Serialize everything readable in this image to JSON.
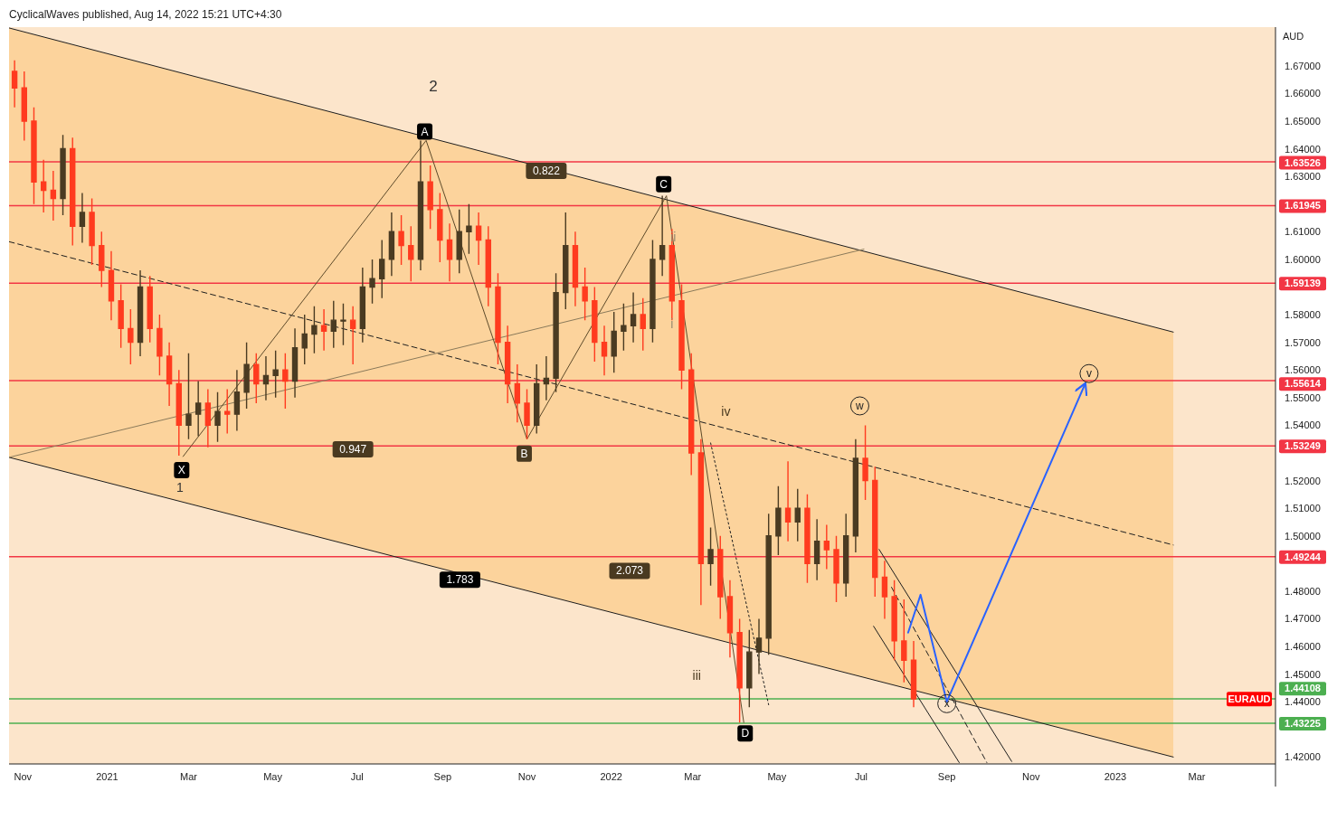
{
  "chart_data": {
    "type": "candlestick",
    "subtitle": "CyclicalWaves published, Aug 14, 2022 15:21 UTC+4:30",
    "ylabel": "AUD",
    "xlim": [
      "2020-10-22",
      "2023-04-27"
    ],
    "ylim": [
      1.4175,
      1.684
    ],
    "xticks": [
      {
        "value": "2020-11-01",
        "label": "Nov"
      },
      {
        "value": "2021-01-01",
        "label": "2021"
      },
      {
        "value": "2021-03-01",
        "label": "Mar"
      },
      {
        "value": "2021-05-01",
        "label": "May"
      },
      {
        "value": "2021-07-01",
        "label": "Jul"
      },
      {
        "value": "2021-09-01",
        "label": "Sep"
      },
      {
        "value": "2021-11-01",
        "label": "Nov"
      },
      {
        "value": "2022-01-01",
        "label": "2022"
      },
      {
        "value": "2022-03-01",
        "label": "Mar"
      },
      {
        "value": "2022-05-01",
        "label": "May"
      },
      {
        "value": "2022-07-01",
        "label": "Jul"
      },
      {
        "value": "2022-09-01",
        "label": "Sep"
      },
      {
        "value": "2022-11-01",
        "label": "Nov"
      },
      {
        "value": "2023-01-01",
        "label": "2023"
      },
      {
        "value": "2023-03-01",
        "label": "Mar"
      }
    ],
    "yticks": [
      {
        "value": 1.42,
        "label": "1.42000"
      },
      {
        "value": 1.44,
        "label": "1.44000"
      },
      {
        "value": 1.45,
        "label": "1.45000"
      },
      {
        "value": 1.46,
        "label": "1.46000"
      },
      {
        "value": 1.47,
        "label": "1.47000"
      },
      {
        "value": 1.48,
        "label": "1.48000"
      },
      {
        "value": 1.5,
        "label": "1.50000"
      },
      {
        "value": 1.51,
        "label": "1.51000"
      },
      {
        "value": 1.52,
        "label": "1.52000"
      },
      {
        "value": 1.54,
        "label": "1.54000"
      },
      {
        "value": 1.55,
        "label": "1.55000"
      },
      {
        "value": 1.56,
        "label": "1.56000"
      },
      {
        "value": 1.57,
        "label": "1.57000"
      },
      {
        "value": 1.58,
        "label": "1.58000"
      },
      {
        "value": 1.6,
        "label": "1.60000"
      },
      {
        "value": 1.61,
        "label": "1.61000"
      },
      {
        "value": 1.63,
        "label": "1.63000"
      },
      {
        "value": 1.64,
        "label": "1.64000"
      },
      {
        "value": 1.65,
        "label": "1.65000"
      },
      {
        "value": 1.66,
        "label": "1.66000"
      },
      {
        "value": 1.67,
        "label": "1.67000"
      }
    ],
    "x": [
      "2020-10-26",
      "2020-11-02",
      "2020-11-09",
      "2020-11-16",
      "2020-11-23",
      "2020-11-30",
      "2020-12-07",
      "2020-12-14",
      "2020-12-21",
      "2020-12-28",
      "2021-01-04",
      "2021-01-11",
      "2021-01-18",
      "2021-01-25",
      "2021-02-01",
      "2021-02-08",
      "2021-02-15",
      "2021-02-22",
      "2021-03-01",
      "2021-03-08",
      "2021-03-15",
      "2021-03-22",
      "2021-03-29",
      "2021-04-05",
      "2021-04-12",
      "2021-04-19",
      "2021-04-26",
      "2021-05-03",
      "2021-05-10",
      "2021-05-17",
      "2021-05-24",
      "2021-05-31",
      "2021-06-07",
      "2021-06-14",
      "2021-06-21",
      "2021-06-28",
      "2021-07-05",
      "2021-07-12",
      "2021-07-19",
      "2021-07-26",
      "2021-08-02",
      "2021-08-09",
      "2021-08-16",
      "2021-08-23",
      "2021-08-30",
      "2021-09-06",
      "2021-09-13",
      "2021-09-20",
      "2021-09-27",
      "2021-10-04",
      "2021-10-11",
      "2021-10-18",
      "2021-10-25",
      "2021-11-01",
      "2021-11-08",
      "2021-11-15",
      "2021-11-22",
      "2021-11-29",
      "2021-12-06",
      "2021-12-13",
      "2021-12-20",
      "2021-12-27",
      "2022-01-03",
      "2022-01-10",
      "2022-01-17",
      "2022-01-24",
      "2022-01-31",
      "2022-02-07",
      "2022-02-14",
      "2022-02-21",
      "2022-02-28",
      "2022-03-07",
      "2022-03-14",
      "2022-03-21",
      "2022-03-28",
      "2022-04-04",
      "2022-04-11",
      "2022-04-18",
      "2022-04-25",
      "2022-05-02",
      "2022-05-09",
      "2022-05-16",
      "2022-05-23",
      "2022-05-30",
      "2022-06-06",
      "2022-06-13",
      "2022-06-20",
      "2022-06-27",
      "2022-07-04",
      "2022-07-11",
      "2022-07-18",
      "2022-07-25",
      "2022-08-01",
      "2022-08-08"
    ],
    "ohlc": [
      [
        1.668,
        1.672,
        1.655,
        1.662
      ],
      [
        1.662,
        1.668,
        1.643,
        1.65
      ],
      [
        1.65,
        1.655,
        1.62,
        1.628
      ],
      [
        1.628,
        1.636,
        1.617,
        1.625
      ],
      [
        1.625,
        1.632,
        1.614,
        1.622
      ],
      [
        1.622,
        1.645,
        1.616,
        1.64
      ],
      [
        1.64,
        1.644,
        1.605,
        1.612
      ],
      [
        1.612,
        1.624,
        1.606,
        1.617
      ],
      [
        1.617,
        1.622,
        1.598,
        1.605
      ],
      [
        1.605,
        1.61,
        1.59,
        1.596
      ],
      [
        1.596,
        1.603,
        1.578,
        1.585
      ],
      [
        1.585,
        1.591,
        1.568,
        1.575
      ],
      [
        1.575,
        1.582,
        1.562,
        1.57
      ],
      [
        1.57,
        1.596,
        1.565,
        1.59
      ],
      [
        1.59,
        1.594,
        1.57,
        1.575
      ],
      [
        1.575,
        1.58,
        1.558,
        1.565
      ],
      [
        1.565,
        1.57,
        1.547,
        1.555
      ],
      [
        1.555,
        1.56,
        1.529,
        1.54
      ],
      [
        1.54,
        1.566,
        1.535,
        1.544
      ],
      [
        1.544,
        1.556,
        1.536,
        1.548
      ],
      [
        1.548,
        1.553,
        1.532,
        1.54
      ],
      [
        1.54,
        1.552,
        1.534,
        1.545
      ],
      [
        1.545,
        1.553,
        1.537,
        1.544
      ],
      [
        1.544,
        1.56,
        1.538,
        1.552
      ],
      [
        1.552,
        1.57,
        1.546,
        1.562
      ],
      [
        1.562,
        1.566,
        1.548,
        1.555
      ],
      [
        1.555,
        1.565,
        1.549,
        1.558
      ],
      [
        1.558,
        1.567,
        1.55,
        1.56
      ],
      [
        1.56,
        1.566,
        1.546,
        1.556
      ],
      [
        1.556,
        1.575,
        1.55,
        1.568
      ],
      [
        1.568,
        1.58,
        1.562,
        1.573
      ],
      [
        1.573,
        1.583,
        1.566,
        1.576
      ],
      [
        1.576,
        1.582,
        1.567,
        1.574
      ],
      [
        1.574,
        1.585,
        1.568,
        1.578
      ],
      [
        1.578,
        1.584,
        1.569,
        1.578
      ],
      [
        1.578,
        1.583,
        1.562,
        1.575
      ],
      [
        1.575,
        1.597,
        1.57,
        1.59
      ],
      [
        1.59,
        1.6,
        1.584,
        1.593
      ],
      [
        1.593,
        1.607,
        1.586,
        1.6
      ],
      [
        1.6,
        1.617,
        1.594,
        1.61
      ],
      [
        1.61,
        1.616,
        1.598,
        1.605
      ],
      [
        1.605,
        1.612,
        1.592,
        1.6
      ],
      [
        1.6,
        1.643,
        1.596,
        1.628
      ],
      [
        1.628,
        1.634,
        1.611,
        1.618
      ],
      [
        1.618,
        1.624,
        1.599,
        1.607
      ],
      [
        1.607,
        1.613,
        1.592,
        1.6
      ],
      [
        1.6,
        1.618,
        1.595,
        1.61
      ],
      [
        1.61,
        1.62,
        1.602,
        1.612
      ],
      [
        1.612,
        1.617,
        1.598,
        1.607
      ],
      [
        1.607,
        1.612,
        1.583,
        1.59
      ],
      [
        1.59,
        1.595,
        1.562,
        1.57
      ],
      [
        1.57,
        1.576,
        1.548,
        1.555
      ],
      [
        1.555,
        1.562,
        1.541,
        1.548
      ],
      [
        1.548,
        1.553,
        1.535,
        1.54
      ],
      [
        1.54,
        1.562,
        1.537,
        1.555
      ],
      [
        1.555,
        1.565,
        1.549,
        1.557
      ],
      [
        1.557,
        1.595,
        1.552,
        1.588
      ],
      [
        1.588,
        1.617,
        1.582,
        1.605
      ],
      [
        1.605,
        1.61,
        1.583,
        1.59
      ],
      [
        1.59,
        1.597,
        1.578,
        1.585
      ],
      [
        1.585,
        1.59,
        1.563,
        1.57
      ],
      [
        1.57,
        1.576,
        1.558,
        1.565
      ],
      [
        1.565,
        1.581,
        1.559,
        1.574
      ],
      [
        1.574,
        1.584,
        1.567,
        1.576
      ],
      [
        1.576,
        1.588,
        1.57,
        1.58
      ],
      [
        1.58,
        1.586,
        1.567,
        1.575
      ],
      [
        1.575,
        1.607,
        1.57,
        1.6
      ],
      [
        1.6,
        1.623,
        1.594,
        1.605
      ],
      [
        1.605,
        1.611,
        1.578,
        1.585
      ],
      [
        1.585,
        1.591,
        1.553,
        1.56
      ],
      [
        1.56,
        1.566,
        1.522,
        1.53
      ],
      [
        1.53,
        1.535,
        1.475,
        1.49
      ],
      [
        1.49,
        1.503,
        1.482,
        1.495
      ],
      [
        1.495,
        1.5,
        1.47,
        1.478
      ],
      [
        1.478,
        1.484,
        1.456,
        1.465
      ],
      [
        1.465,
        1.47,
        1.4325,
        1.445
      ],
      [
        1.445,
        1.466,
        1.438,
        1.458
      ],
      [
        1.458,
        1.47,
        1.45,
        1.463
      ],
      [
        1.463,
        1.508,
        1.457,
        1.5
      ],
      [
        1.5,
        1.518,
        1.493,
        1.51
      ],
      [
        1.51,
        1.527,
        1.498,
        1.505
      ],
      [
        1.505,
        1.517,
        1.498,
        1.51
      ],
      [
        1.51,
        1.515,
        1.483,
        1.49
      ],
      [
        1.49,
        1.506,
        1.484,
        1.498
      ],
      [
        1.498,
        1.504,
        1.488,
        1.495
      ],
      [
        1.495,
        1.5,
        1.476,
        1.483
      ],
      [
        1.483,
        1.508,
        1.478,
        1.5
      ],
      [
        1.5,
        1.535,
        1.494,
        1.528
      ],
      [
        1.528,
        1.54,
        1.513,
        1.52
      ],
      [
        1.52,
        1.525,
        1.478,
        1.485
      ],
      [
        1.485,
        1.491,
        1.47,
        1.478
      ],
      [
        1.478,
        1.484,
        1.455,
        1.462
      ],
      [
        1.462,
        1.477,
        1.447,
        1.455
      ],
      [
        1.455,
        1.462,
        1.438,
        1.441
      ]
    ],
    "colors": [
      "#ff3b1f",
      "#ff3b1f",
      "#ff3b1f",
      "#ff3b1f",
      "#ff3b1f",
      "#4a3b22",
      "#ff3b1f",
      "#4a3b22",
      "#ff3b1f",
      "#ff3b1f",
      "#ff3b1f",
      "#ff3b1f",
      "#ff3b1f",
      "#4a3b22",
      "#ff3b1f",
      "#ff3b1f",
      "#ff3b1f",
      "#ff3b1f",
      "#4a3b22",
      "#4a3b22",
      "#ff3b1f",
      "#4a3b22",
      "#ff3b1f",
      "#4a3b22",
      "#4a3b22",
      "#ff3b1f",
      "#4a3b22",
      "#4a3b22",
      "#ff3b1f",
      "#4a3b22",
      "#4a3b22",
      "#4a3b22",
      "#ff3b1f",
      "#4a3b22",
      "#4a3b22",
      "#ff3b1f",
      "#4a3b22",
      "#4a3b22",
      "#4a3b22",
      "#4a3b22",
      "#ff3b1f",
      "#ff3b1f",
      "#4a3b22",
      "#ff3b1f",
      "#ff3b1f",
      "#ff3b1f",
      "#4a3b22",
      "#4a3b22",
      "#ff3b1f",
      "#ff3b1f",
      "#ff3b1f",
      "#ff3b1f",
      "#ff3b1f",
      "#ff3b1f",
      "#4a3b22",
      "#4a3b22",
      "#4a3b22",
      "#4a3b22",
      "#ff3b1f",
      "#ff3b1f",
      "#ff3b1f",
      "#ff3b1f",
      "#4a3b22",
      "#4a3b22",
      "#4a3b22",
      "#ff3b1f",
      "#4a3b22",
      "#4a3b22",
      "#ff3b1f",
      "#ff3b1f",
      "#ff3b1f",
      "#ff3b1f",
      "#4a3b22",
      "#ff3b1f",
      "#ff3b1f",
      "#ff3b1f",
      "#4a3b22",
      "#4a3b22",
      "#4a3b22",
      "#4a3b22",
      "#ff3b1f",
      "#4a3b22",
      "#ff3b1f",
      "#4a3b22",
      "#ff3b1f",
      "#ff3b1f",
      "#4a3b22",
      "#4a3b22",
      "#ff3b1f",
      "#ff3b1f",
      "#ff3b1f",
      "#ff3b1f",
      "#ff3b1f",
      "#ff3b1f"
    ],
    "series": [
      {
        "type": "line",
        "color": "#1e1e1e",
        "x": [
          "2020-10-22",
          "2023-02-12"
        ],
        "values": [
          1.6837,
          1.5737
        ]
      },
      {
        "type": "line",
        "color": "#1e1e1e",
        "x": [
          "2020-10-22",
          "2023-02-12"
        ],
        "values": [
          1.5284,
          1.42
        ]
      },
      {
        "type": "line",
        "color": "#1e1e1e",
        "line_style": "dashed",
        "x": [
          "2020-10-22",
          "2023-02-12"
        ],
        "values": [
          1.6064,
          1.4967
        ],
        "lower": [
          1.5284,
          1.42
        ],
        "upper": [
          1.6837,
          1.5737
        ]
      },
      {
        "type": "line",
        "color": "#8a7a5a",
        "x": [
          "2020-10-22",
          "2022-07-03"
        ],
        "values": [
          1.5284,
          1.6037
        ]
      },
      {
        "type": "line",
        "color": "#5d4a2a",
        "x": [
          "2021-02-25",
          "2021-08-20",
          "2021-11-01",
          "2022-02-10",
          "2022-04-07"
        ],
        "values": [
          1.5287,
          1.643,
          1.535,
          1.623,
          1.4325
        ]
      },
      {
        "type": "line",
        "color": "#1e1e1e",
        "line_style": "dotted",
        "x": [
          "2022-03-14",
          "2022-04-25"
        ],
        "values": [
          1.5336,
          1.4389
        ]
      },
      {
        "type": "line",
        "color": "#1e1e1e",
        "x": [
          "2022-07-14",
          "2022-10-18"
        ],
        "values": [
          1.4951,
          1.4184
        ]
      },
      {
        "type": "line",
        "color": "#1e1e1e",
        "x": [
          "2022-07-10",
          "2022-09-10"
        ],
        "values": [
          1.4673,
          1.418
        ]
      },
      {
        "type": "line",
        "color": "#1e1e1e",
        "line_style": "dashed",
        "x": [
          "2022-07-23",
          "2022-09-30"
        ],
        "values": [
          1.4814,
          1.418
        ]
      },
      {
        "type": "line",
        "color": "#2962ff",
        "x": [
          "2022-08-04",
          "2022-08-13",
          "2022-09-01",
          "2022-12-10"
        ],
        "values": [
          1.465,
          1.4787,
          1.44,
          1.5548
        ]
      }
    ],
    "ref_lines": [
      {
        "axis": "y",
        "value": 1.63526,
        "label": "1.63526",
        "color": "#f23645"
      },
      {
        "axis": "y",
        "value": 1.61945,
        "label": "1.61945",
        "color": "#f23645"
      },
      {
        "axis": "y",
        "value": 1.59139,
        "label": "1.59139",
        "color": "#f23645"
      },
      {
        "axis": "y",
        "value": 1.55614,
        "label": "1.55614",
        "color": "#f23645"
      },
      {
        "axis": "y",
        "value": 1.53249,
        "label": "1.53249",
        "color": "#f23645"
      },
      {
        "axis": "y",
        "value": 1.49244,
        "label": "1.49244",
        "color": "#f23645"
      },
      {
        "axis": "y",
        "value": 1.44108,
        "label": "1.44108",
        "color": "#4caf50"
      },
      {
        "axis": "y",
        "value": 1.43225,
        "label": "1.43225",
        "color": "#4caf50"
      }
    ],
    "annotations": [
      "2",
      "1",
      {
        "text": "X",
        "x": "2021-02-24",
        "y": 1.5238
      },
      {
        "text": "A",
        "x": "2021-08-19",
        "y": 1.6462
      },
      {
        "text": "B",
        "x": "2021-10-30",
        "y": 1.5297
      },
      {
        "text": "C",
        "x": "2022-02-08",
        "y": 1.6272
      },
      {
        "text": "D",
        "x": "2022-04-08",
        "y": 1.4285
      },
      {
        "text": "0.822",
        "x": "2021-11-15",
        "y": 1.632
      },
      {
        "text": "0.947",
        "x": "2021-06-28",
        "y": 1.5313
      },
      "1.783",
      "2.073",
      {
        "text": "i",
        "x": "2022-02-14",
        "y": 1.5767
      },
      {
        "text": "ii",
        "x": "2022-02-15",
        "y": 1.608
      },
      "iii",
      "iv",
      {
        "text": "w",
        "x": "2022-06-30",
        "y": 1.547
      },
      {
        "text": "x",
        "x": "2022-09-01",
        "y": 1.4393
      },
      {
        "text": "v",
        "x": "2022-12-13",
        "y": 1.5587
      },
      {
        "text": "EURAUD",
        "y": 1.441
      }
    ]
  }
}
